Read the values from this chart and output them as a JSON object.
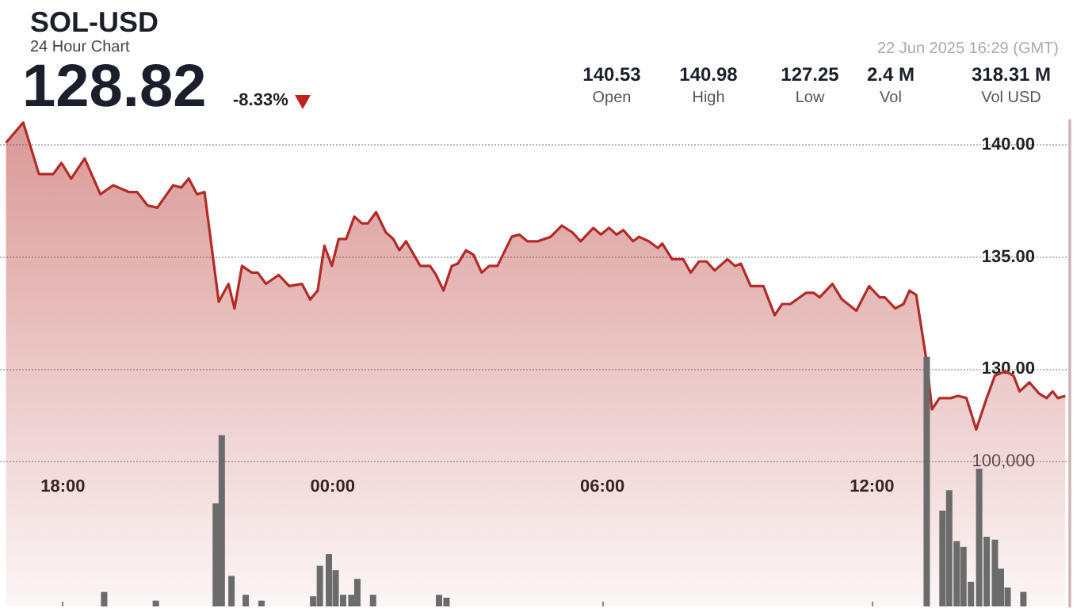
{
  "chart_data": {
    "type": "area",
    "title": "SOL-USD",
    "subtitle": "24 Hour Chart",
    "annotations": [
      "128.82",
      "-8.33%",
      "22 Jun 2025 16:29 (GMT)",
      "140.53",
      "Open",
      "140.98",
      "High",
      "127.25",
      "Low",
      "2.4 M",
      "Vol",
      "318.31 M",
      "Vol USD"
    ],
    "xlim": [
      "2025-06-21T16:36",
      "2025-06-22T16:24"
    ],
    "xticks": [
      {
        "value": "2025-06-21T18:00",
        "label": "18:00"
      },
      {
        "value": "2025-06-22T00:00",
        "label": "00:00"
      },
      {
        "value": "2025-06-22T06:00",
        "label": "06:00"
      },
      {
        "value": "2025-06-22T12:00",
        "label": "12:00"
      }
    ],
    "ylim": [
      119.4,
      141.1
    ],
    "yticks": [
      {
        "value": 130,
        "label": "130.00"
      },
      {
        "value": 135,
        "label": "135.00"
      },
      {
        "value": 140,
        "label": "140.00"
      }
    ],
    "y2lim": [
      0,
      335000
    ],
    "y2ticks": [
      {
        "value": 100000,
        "label": "100,000"
      }
    ],
    "grid": "y",
    "series": [
      {
        "color": "#b22b27",
        "x": [
          "2025-06-21T16:44",
          "2025-06-21T17:07",
          "2025-06-21T17:28",
          "2025-06-21T17:47",
          "2025-06-21T17:58",
          "2025-06-21T18:11",
          "2025-06-21T18:29",
          "2025-06-21T18:50",
          "2025-06-21T19:07",
          "2025-06-21T19:28",
          "2025-06-21T19:39",
          "2025-06-21T19:53",
          "2025-06-21T20:06",
          "2025-06-21T20:27",
          "2025-06-21T20:38",
          "2025-06-21T20:48",
          "2025-06-21T20:59",
          "2025-06-21T21:09",
          "2025-06-21T21:28",
          "2025-06-21T21:41",
          "2025-06-21T21:49",
          "2025-06-21T21:59",
          "2025-06-21T22:12",
          "2025-06-21T22:20",
          "2025-06-21T22:31",
          "2025-06-21T22:48",
          "2025-06-21T23:02",
          "2025-06-21T23:19",
          "2025-06-21T23:30",
          "2025-06-21T23:40",
          "2025-06-21T23:49",
          "2025-06-21T23:59",
          "2025-06-22T00:08",
          "2025-06-22T00:18",
          "2025-06-22T00:29",
          "2025-06-22T00:39",
          "2025-06-22T00:47",
          "2025-06-22T00:58",
          "2025-06-22T01:11",
          "2025-06-22T01:21",
          "2025-06-22T01:29",
          "2025-06-22T01:38",
          "2025-06-22T01:57",
          "2025-06-22T02:10",
          "2025-06-22T02:18",
          "2025-06-22T02:28",
          "2025-06-22T02:39",
          "2025-06-22T02:47",
          "2025-06-22T02:58",
          "2025-06-22T03:08",
          "2025-06-22T03:19",
          "2025-06-22T03:29",
          "2025-06-22T03:40",
          "2025-06-22T03:59",
          "2025-06-22T04:09",
          "2025-06-22T04:20",
          "2025-06-22T04:34",
          "2025-06-22T04:51",
          "2025-06-22T05:06",
          "2025-06-22T05:20",
          "2025-06-22T05:31",
          "2025-06-22T05:48",
          "2025-06-22T05:58",
          "2025-06-22T06:09",
          "2025-06-22T06:19",
          "2025-06-22T06:28",
          "2025-06-22T06:41",
          "2025-06-22T06:49",
          "2025-06-22T07:02",
          "2025-06-22T07:14",
          "2025-06-22T07:20",
          "2025-06-22T07:33",
          "2025-06-22T07:48",
          "2025-06-22T07:58",
          "2025-06-22T08:09",
          "2025-06-22T08:19",
          "2025-06-22T08:30",
          "2025-06-22T08:47",
          "2025-06-22T08:57",
          "2025-06-22T09:05",
          "2025-06-22T09:18",
          "2025-06-22T09:35",
          "2025-06-22T09:50",
          "2025-06-22T10:00",
          "2025-06-22T10:11",
          "2025-06-22T10:32",
          "2025-06-22T10:42",
          "2025-06-22T10:50",
          "2025-06-22T11:07",
          "2025-06-22T11:20",
          "2025-06-22T11:39",
          "2025-06-22T11:56",
          "2025-06-22T12:10",
          "2025-06-22T12:17",
          "2025-06-22T12:31",
          "2025-06-22T12:42",
          "2025-06-22T12:50",
          "2025-06-22T12:59",
          "2025-06-22T13:13",
          "2025-06-22T13:20",
          "2025-06-22T13:30",
          "2025-06-22T13:45",
          "2025-06-22T13:55",
          "2025-06-22T14:06",
          "2025-06-22T14:19",
          "2025-06-22T14:33",
          "2025-06-22T14:44",
          "2025-06-22T14:58",
          "2025-06-22T15:09",
          "2025-06-22T15:17",
          "2025-06-22T15:30",
          "2025-06-22T15:43",
          "2025-06-22T15:53",
          "2025-06-22T16:01",
          "2025-06-22T16:08",
          "2025-06-22T16:18"
        ],
        "values": [
          140.1,
          141.0,
          138.7,
          138.7,
          139.2,
          138.5,
          139.4,
          137.8,
          138.2,
          137.9,
          137.9,
          137.3,
          137.2,
          138.2,
          138.1,
          138.5,
          137.8,
          137.9,
          133.0,
          133.8,
          132.7,
          134.6,
          134.3,
          134.3,
          133.8,
          134.2,
          133.7,
          133.8,
          133.1,
          133.5,
          135.5,
          134.6,
          135.8,
          135.8,
          136.8,
          136.5,
          136.5,
          137.0,
          136.1,
          135.8,
          135.3,
          135.7,
          134.6,
          134.6,
          134.2,
          133.5,
          134.6,
          134.7,
          135.3,
          135.1,
          134.3,
          134.6,
          134.6,
          135.9,
          136.0,
          135.7,
          135.7,
          135.9,
          136.4,
          136.1,
          135.7,
          136.3,
          136.0,
          136.3,
          136.0,
          136.2,
          135.7,
          135.9,
          135.7,
          135.4,
          135.6,
          134.9,
          134.9,
          134.3,
          134.8,
          134.8,
          134.4,
          134.9,
          134.6,
          134.7,
          133.7,
          133.7,
          132.4,
          132.9,
          132.9,
          133.4,
          133.4,
          133.2,
          133.8,
          133.1,
          132.6,
          133.7,
          133.2,
          133.2,
          132.7,
          132.9,
          133.5,
          133.3,
          130.3,
          128.2,
          128.7,
          128.7,
          128.8,
          128.7,
          127.3,
          128.7,
          129.7,
          129.9,
          129.7,
          129.0,
          129.4,
          128.9,
          128.7,
          129.0,
          128.7,
          128.8
        ]
      },
      {
        "type": "bar",
        "axis": "y2",
        "color": "#6b6b6b",
        "x": [
          "2025-06-21T18:55",
          "2025-06-21T20:04",
          "2025-06-21T21:24",
          "2025-06-21T21:32",
          "2025-06-21T21:45",
          "2025-06-21T22:04",
          "2025-06-21T22:25",
          "2025-06-21T23:34",
          "2025-06-21T23:43",
          "2025-06-21T23:55",
          "2025-06-22T00:04",
          "2025-06-22T00:14",
          "2025-06-22T00:25",
          "2025-06-22T00:33",
          "2025-06-22T00:54",
          "2025-06-22T02:22",
          "2025-06-22T02:32",
          "2025-06-22T13:13",
          "2025-06-22T13:34",
          "2025-06-22T13:43",
          "2025-06-22T13:53",
          "2025-06-22T14:02",
          "2025-06-22T14:12",
          "2025-06-22T14:23",
          "2025-06-22T14:33",
          "2025-06-22T14:44",
          "2025-06-22T14:52",
          "2025-06-22T15:01",
          "2025-06-22T15:22"
        ],
        "values": [
          10000,
          4000,
          71000,
          118000,
          21000,
          8000,
          4000,
          7000,
          28000,
          36000,
          25000,
          8000,
          8000,
          19000,
          8000,
          8000,
          6000,
          172000,
          66000,
          80000,
          45000,
          41000,
          17000,
          95000,
          48000,
          46000,
          26000,
          13000,
          10000
        ]
      }
    ]
  }
}
